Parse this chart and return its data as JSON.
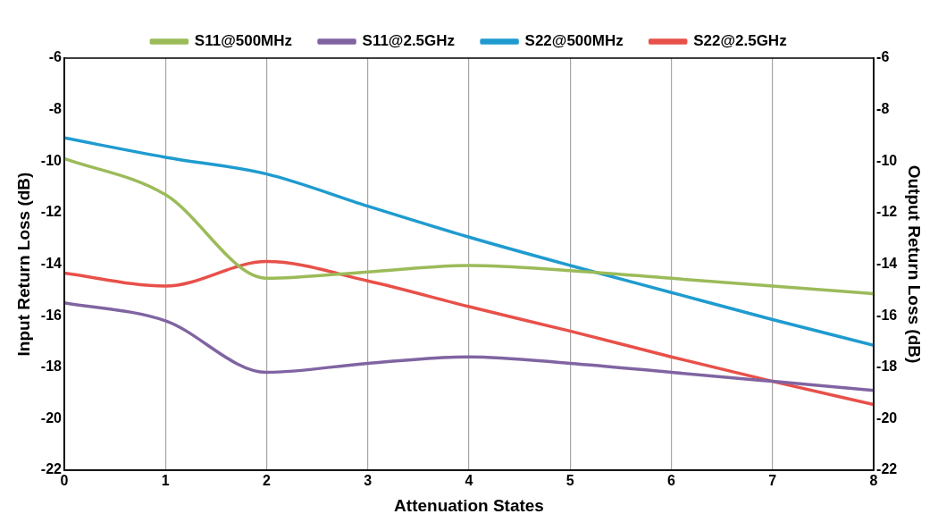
{
  "chart_data": {
    "type": "line",
    "xlabel": "Attenuation States",
    "ylabel": "Input Return Loss (dB)",
    "y2label": "Output Return Loss (dB)",
    "x": [
      0,
      1,
      2,
      3,
      4,
      5,
      6,
      7,
      8
    ],
    "series": [
      {
        "name": "S11@500MHz",
        "color": "#9bbb59",
        "values": [
          -9.9,
          -11.3,
          -14.55,
          -14.3,
          -14.05,
          -14.25,
          -14.55,
          -14.85,
          -15.15
        ]
      },
      {
        "name": "S11@2.5GHz",
        "color": "#8064a2",
        "values": [
          -15.5,
          -16.2,
          -18.2,
          -17.85,
          -17.6,
          -17.85,
          -18.2,
          -18.55,
          -18.9
        ]
      },
      {
        "name": "S22@500MHz",
        "color": "#1f9bcf",
        "values": [
          -9.1,
          -9.85,
          -10.5,
          -11.75,
          -12.95,
          -14.05,
          -15.1,
          -16.15,
          -17.15
        ]
      },
      {
        "name": "S22@2.5GHz",
        "color": "#e8504a",
        "values": [
          -14.35,
          -14.85,
          -13.9,
          -14.65,
          -15.65,
          -16.6,
          -17.6,
          -18.55,
          -19.45
        ]
      }
    ],
    "xlim": [
      0,
      8
    ],
    "xticks": [
      0,
      1,
      2,
      3,
      4,
      5,
      6,
      7,
      8
    ],
    "ylim": [
      -22,
      -6
    ],
    "yticks": [
      -22,
      -20,
      -18,
      -16,
      -14,
      -12,
      -10,
      -8,
      -6
    ],
    "y2lim": [
      -22,
      -6
    ],
    "y2ticks": [
      -22,
      -20,
      -18,
      -16,
      -14,
      -12,
      -10,
      -8,
      -6
    ],
    "grid": "x",
    "legend": "top",
    "marker": "none",
    "line_style": "solid"
  }
}
